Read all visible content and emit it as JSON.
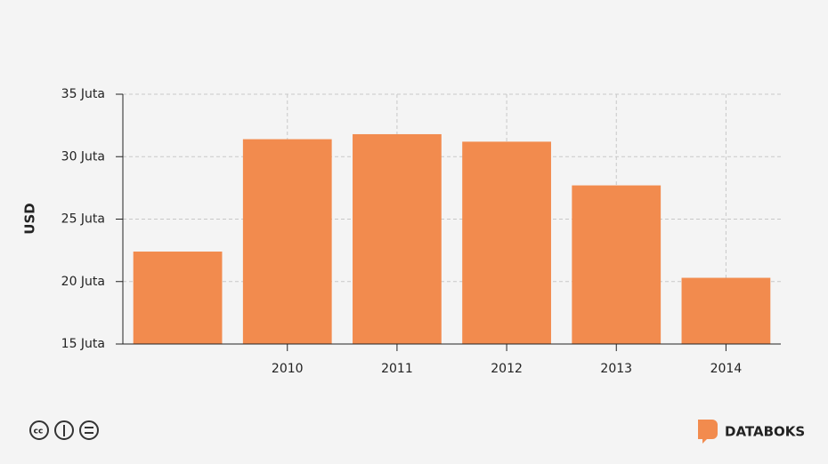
{
  "chart_data": {
    "type": "bar",
    "y_label": "USD",
    "categories": [
      null,
      "2010",
      "2011",
      "2012",
      "2013",
      "2014"
    ],
    "values": [
      22.4,
      31.4,
      31.8,
      31.2,
      27.7,
      20.3
    ],
    "color": "#f28b4e",
    "ylim": [
      15,
      35
    ],
    "yticks": [
      {
        "value": 15,
        "label": "15 Juta"
      },
      {
        "value": 20,
        "label": "20 Juta"
      },
      {
        "value": 25,
        "label": "25 Juta"
      },
      {
        "value": 30,
        "label": "30 Juta"
      },
      {
        "value": 35,
        "label": "35 Juta"
      }
    ],
    "grid": true
  },
  "footer": {
    "brand": "DATABOKS"
  }
}
